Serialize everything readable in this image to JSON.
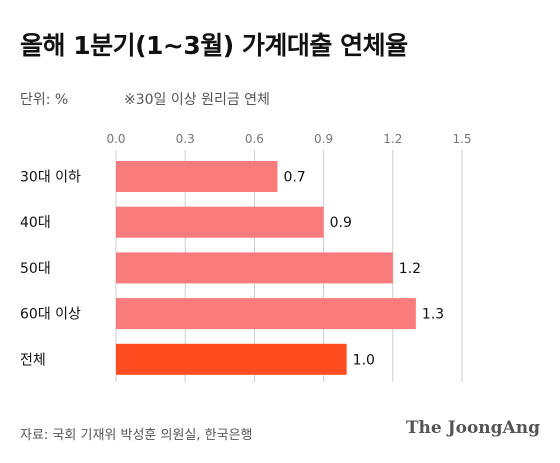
{
  "title": "올해 1분기(1~3월) 가계대출 연체율",
  "unit_label": "단위: %",
  "note": "※30일 이상 원리금 연체",
  "source": "자료: 국회 기재위 박성훈 의원실, 한국은행",
  "logo_text": "The JoongAng",
  "colors": {
    "bar": "#f97b7b",
    "bar_highlight": "#ff4d1f",
    "grid": "#cccccc"
  },
  "chart_data": {
    "type": "bar",
    "orientation": "horizontal",
    "title": "올해 1분기(1~3월) 가계대출 연체율",
    "categories": [
      "30대 이하",
      "40대",
      "50대",
      "60대 이상",
      "전체"
    ],
    "values": [
      0.7,
      0.9,
      1.2,
      1.3,
      1.0
    ],
    "value_labels": [
      "0.7",
      "0.9",
      "1.2",
      "1.3",
      "1.0"
    ],
    "highlight_category": "전체",
    "xlim": [
      0,
      1.5
    ],
    "ticks": [
      0.0,
      0.3,
      0.6,
      0.9,
      1.2,
      1.5
    ],
    "tick_labels": [
      "0.0",
      "0.3",
      "0.6",
      "0.9",
      "1.2",
      "1.5"
    ],
    "grid": true,
    "xlabel": "",
    "ylabel": ""
  }
}
